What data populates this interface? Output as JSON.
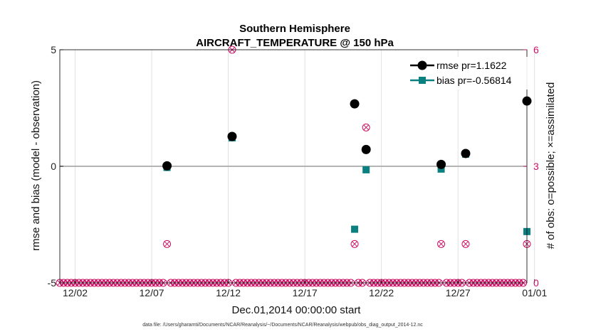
{
  "chart_data": {
    "type": "scatter",
    "title": "Southern Hemisphere",
    "subtitle": "AIRCRAFT_TEMPERATURE @ 150 hPa",
    "xlabel": "Dec.01,2014 00:00:00 start",
    "ylabel": "rmse and bias (model - observation)",
    "ylabel_right": "# of obs: o=possible; ×=assimilated",
    "footer": "data file: /Users/gharamti/Documents/NCAR/Reanalysis/~/Documents/NCAR/Reanalysis/webpub/obs_diag_output_2014-12.nc",
    "xlim": [
      0,
      30.5
    ],
    "ylim": [
      -5,
      5
    ],
    "ylim_right": [
      0,
      6
    ],
    "x_ticks": [
      1,
      6,
      11,
      16,
      21,
      26,
      31
    ],
    "x_tick_labels": [
      "12/02",
      "12/07",
      "12/12",
      "12/17",
      "12/22",
      "12/27",
      "01/01"
    ],
    "y_ticks": [
      -5,
      0,
      5
    ],
    "y_tick_labels": [
      "-5",
      "0",
      "5"
    ],
    "y_right_ticks": [
      0,
      3,
      6
    ],
    "y_right_tick_labels": [
      "0",
      "3",
      "6"
    ],
    "grid": true,
    "legend_position": "top-right",
    "colors": {
      "rmse": "#000000",
      "bias": "#0a8080",
      "obs": "#cc1166",
      "zero_line": "#aaaaaa",
      "grid": "#d9d9d9"
    },
    "series": [
      {
        "name": "rmse pr=1.1622",
        "x": [
          7.0,
          11.25,
          19.25,
          20.0,
          24.9,
          26.5,
          30.5
        ],
        "values": [
          0.02,
          1.28,
          2.68,
          0.72,
          0.08,
          0.55,
          2.8
        ]
      },
      {
        "name": "bias pr=-0.56814",
        "x": [
          7.0,
          11.25,
          19.25,
          20.0,
          24.9,
          26.5,
          30.5
        ],
        "values": [
          -0.05,
          1.22,
          -2.7,
          -0.15,
          -0.12,
          0.52,
          -2.8
        ]
      }
    ],
    "obs_counts": {
      "name": "# of obs (possible and assimilated)",
      "x": [
        7.0,
        11.25,
        19.25,
        20.0,
        24.9,
        26.5,
        30.5
      ],
      "values": [
        1,
        6,
        1,
        4,
        1,
        1,
        1
      ],
      "zero_marker_step": 0.25
    }
  }
}
